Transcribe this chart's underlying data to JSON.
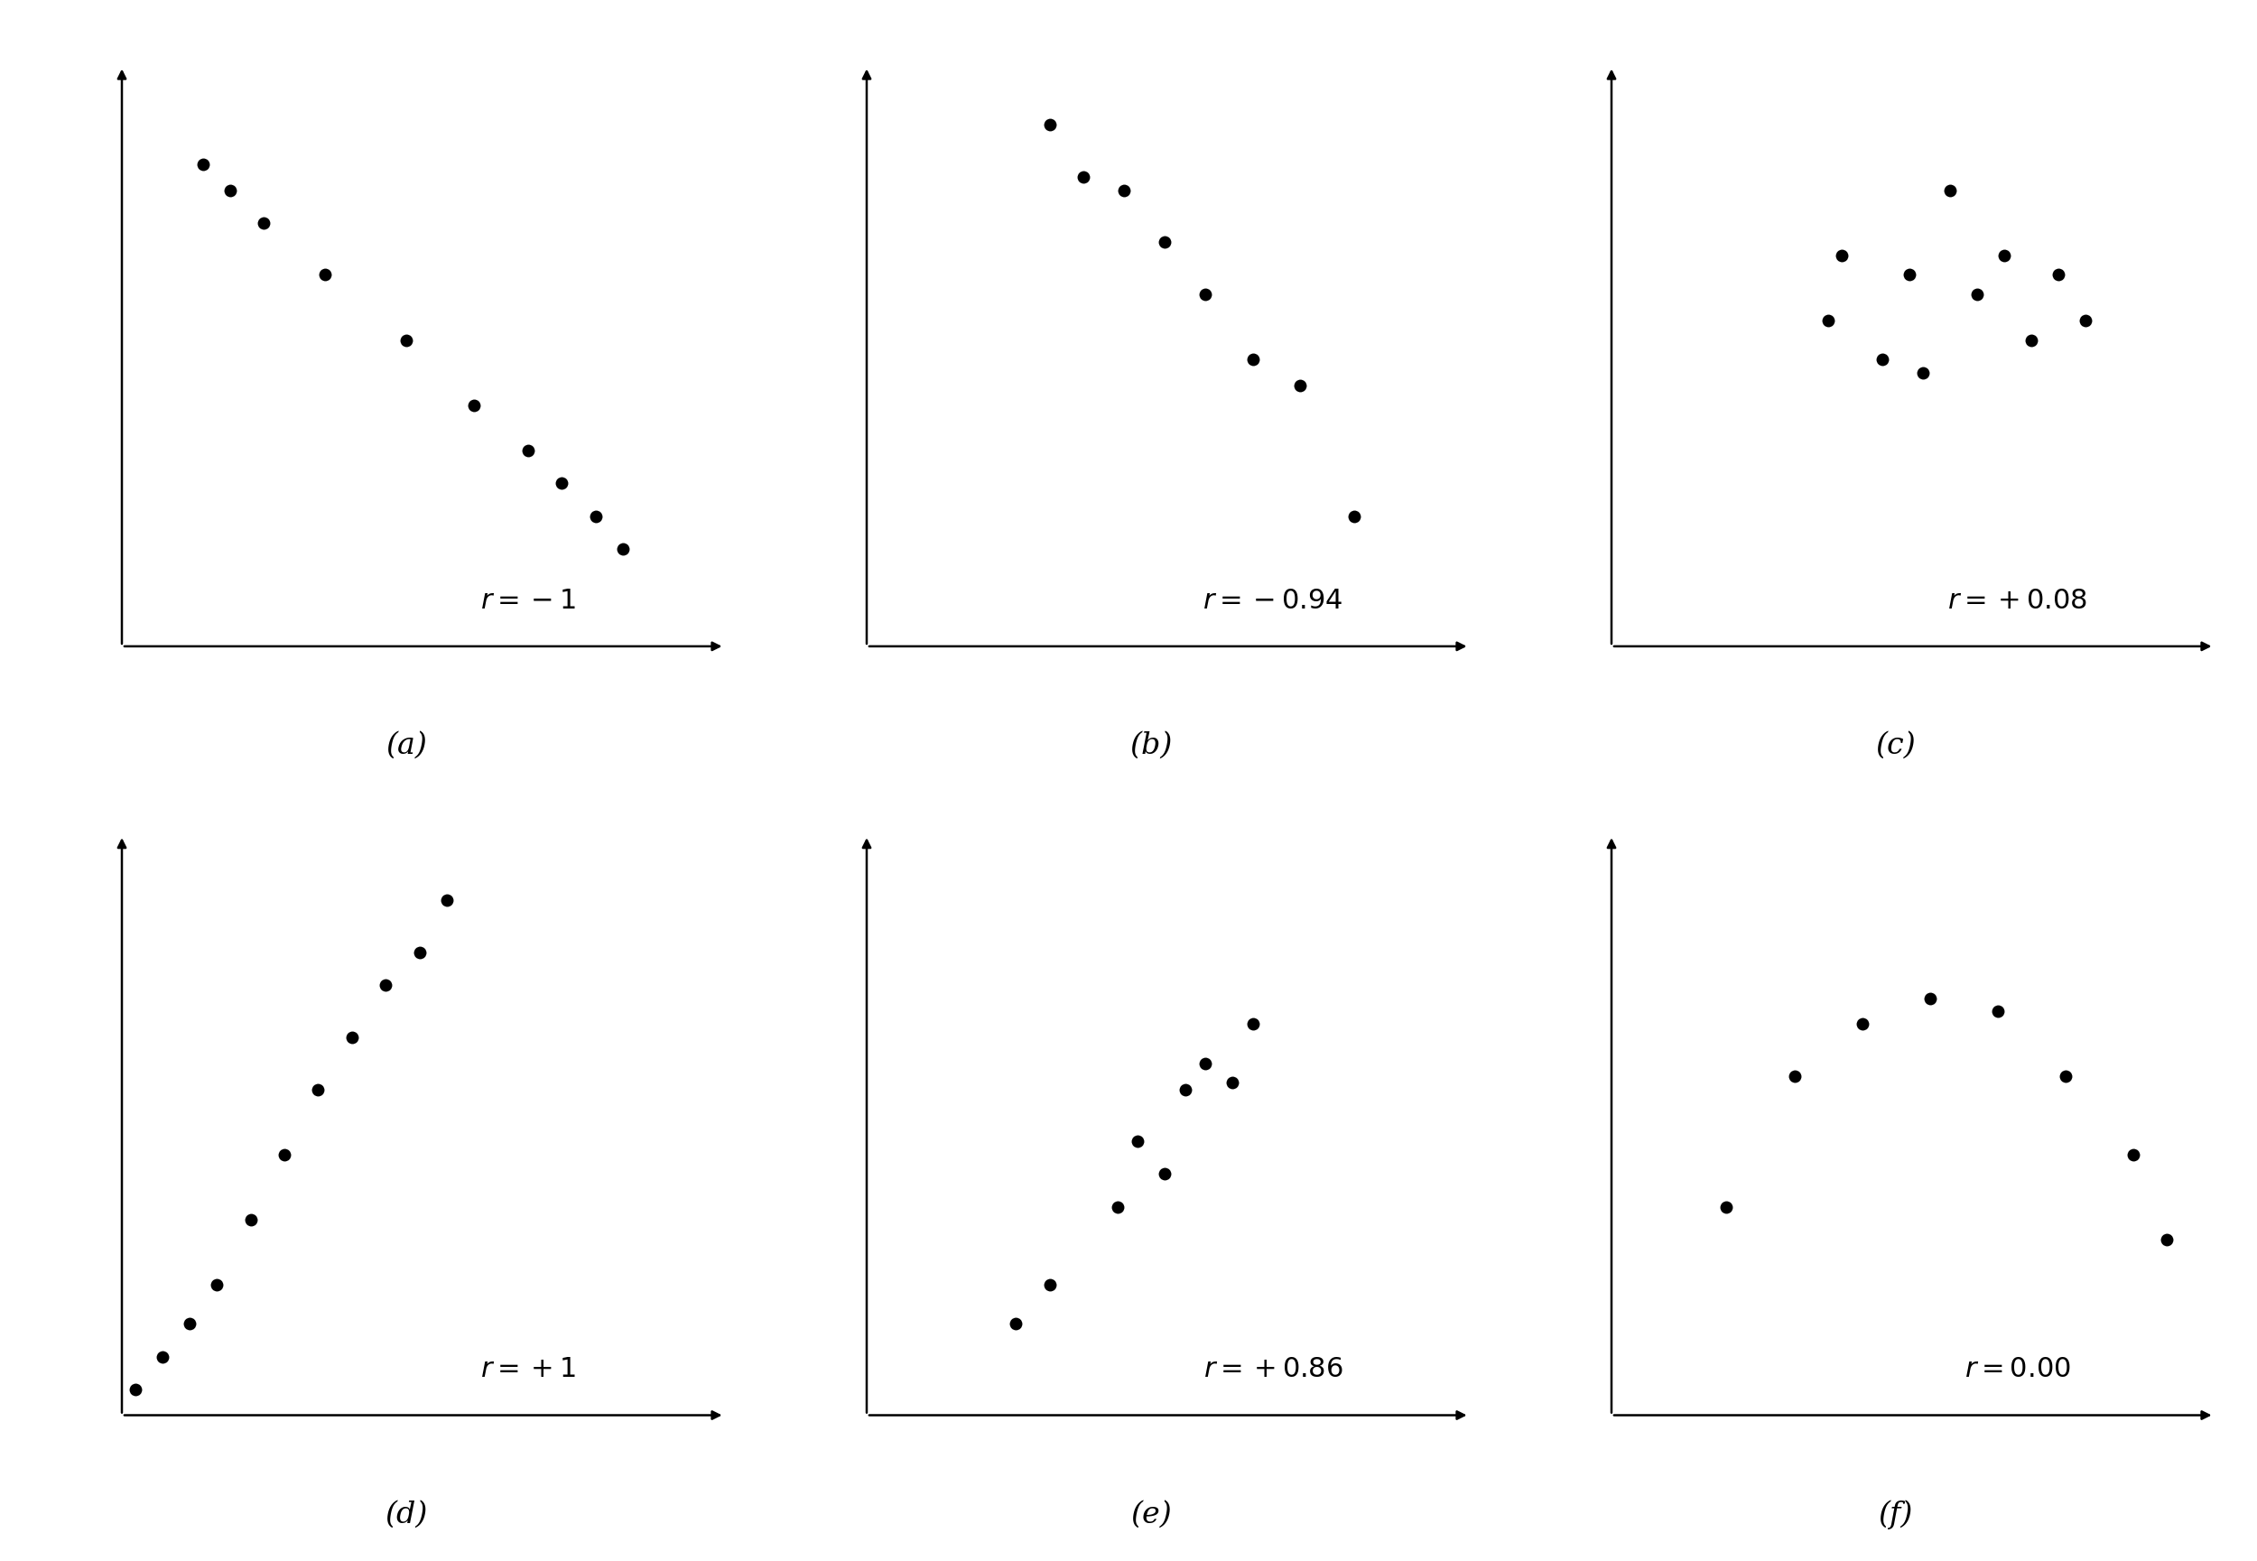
{
  "panels": [
    {
      "label": "(a)",
      "r_text": "$r = -1$",
      "x": [
        2.0,
        2.4,
        2.9,
        3.8,
        5.0,
        6.0,
        6.8,
        7.3,
        7.8,
        8.2
      ],
      "y": [
        8.2,
        7.8,
        7.3,
        6.5,
        5.5,
        4.5,
        3.8,
        3.3,
        2.8,
        2.3
      ]
    },
    {
      "label": "(b)",
      "r_text": "$r = -0.94$",
      "x": [
        3.5,
        4.0,
        4.6,
        5.2,
        5.8,
        6.5,
        7.2,
        8.0
      ],
      "y": [
        8.8,
        8.0,
        7.8,
        7.0,
        6.2,
        5.2,
        4.8,
        2.8
      ]
    },
    {
      "label": "(c)",
      "r_text": "$r = +0.08$",
      "x": [
        4.0,
        4.2,
        4.8,
        5.2,
        5.4,
        5.8,
        6.2,
        6.6,
        7.0,
        7.4,
        7.8
      ],
      "y": [
        5.8,
        6.8,
        5.2,
        6.5,
        5.0,
        7.8,
        6.2,
        6.8,
        5.5,
        6.5,
        5.8
      ]
    },
    {
      "label": "(d)",
      "r_text": "$r = +1$",
      "x": [
        1.0,
        1.4,
        1.8,
        2.2,
        2.7,
        3.2,
        3.7,
        4.2,
        4.7,
        5.2,
        5.6
      ],
      "y": [
        1.2,
        1.7,
        2.2,
        2.8,
        3.8,
        4.8,
        5.8,
        6.6,
        7.4,
        7.9,
        8.7
      ]
    },
    {
      "label": "(e)",
      "r_text": "$r = +0.86$",
      "x": [
        3.0,
        3.5,
        4.5,
        4.8,
        5.2,
        5.5,
        5.8,
        6.2,
        6.5
      ],
      "y": [
        2.2,
        2.8,
        4.0,
        5.0,
        4.5,
        5.8,
        6.2,
        5.9,
        6.8
      ]
    },
    {
      "label": "(f)",
      "r_text": "$r = 0.00$",
      "x": [
        2.5,
        3.5,
        4.5,
        5.5,
        6.5,
        7.5,
        8.5,
        9.0
      ],
      "y": [
        4.0,
        6.0,
        6.8,
        7.2,
        7.0,
        6.0,
        4.8,
        3.5
      ]
    }
  ],
  "dot_color": "#000000",
  "dot_size": 100,
  "bg_color": "#ffffff",
  "label_fontsize": 24,
  "r_fontsize": 22,
  "axis_lw": 1.8,
  "arrow_size": 15
}
